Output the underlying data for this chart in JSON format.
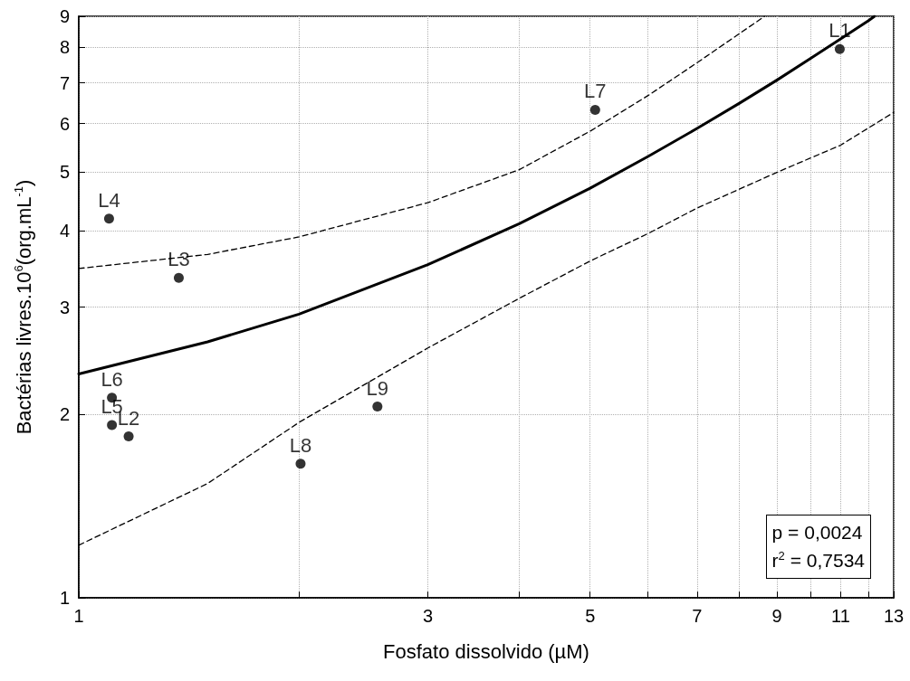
{
  "chart_data": {
    "type": "scatter",
    "xlabel": "Fosfato dissolvido (µM)",
    "ylabel": "Bactérias livres.10$^{6}$(org.mL$^{-1}$)",
    "series": [
      {
        "color": "#000000",
        "marker": "circle",
        "x": [
          10.97,
          1.17,
          1.37,
          1.1,
          1.11,
          1.11,
          5.08,
          2.01,
          2.56
        ],
        "values": [
          7.95,
          1.84,
          3.35,
          4.19,
          1.92,
          2.13,
          6.32,
          1.66,
          2.06
        ],
        "value_labels": [
          "L1",
          "L2",
          "L3",
          "L4",
          "L5",
          "L6",
          "L7",
          "L8",
          "L9"
        ]
      },
      {
        "type": "line",
        "color": "#000000",
        "marker": "none",
        "line_style": "solid",
        "x": [
          1,
          1.5,
          2,
          3,
          4,
          5,
          6,
          7,
          8,
          9,
          10,
          11,
          12,
          12.24
        ],
        "values": [
          2.33,
          2.63,
          2.92,
          3.52,
          4.11,
          4.7,
          5.3,
          5.89,
          6.48,
          7.07,
          7.67,
          8.26,
          8.85,
          9.0
        ]
      },
      {
        "type": "line",
        "color": "#000000",
        "marker": "none",
        "line_style": "dashed",
        "x": [
          1,
          1.5,
          2,
          3,
          4,
          5,
          6,
          7,
          8.66
        ],
        "values": [
          3.47,
          3.66,
          3.91,
          4.45,
          5.04,
          5.83,
          6.67,
          7.55,
          9.0
        ]
      },
      {
        "type": "line",
        "color": "#000000",
        "marker": "none",
        "line_style": "dashed",
        "x": [
          1,
          1.5,
          2,
          3,
          4,
          5,
          6,
          7,
          9,
          11,
          13
        ],
        "values": [
          1.22,
          1.54,
          1.94,
          2.57,
          3.1,
          3.57,
          3.96,
          4.36,
          4.99,
          5.53,
          6.26
        ]
      }
    ],
    "xlim": [
      1,
      13
    ],
    "ylim": [
      1,
      9
    ],
    "xticks": [
      1,
      {
        "value": 2,
        "label": null
      },
      3,
      {
        "value": 4,
        "label": null
      },
      5,
      {
        "value": 6,
        "label": null
      },
      7,
      {
        "value": 8,
        "label": null
      },
      9,
      {
        "value": 10,
        "label": null
      },
      11,
      {
        "value": 12,
        "label": null
      },
      13
    ],
    "yticks": [
      1,
      2,
      3,
      4,
      5,
      6,
      7,
      8,
      9
    ],
    "log": "xy",
    "grid": true,
    "annotations": [
      "p = 0,0024",
      "r$^{2}$ = 0,7534"
    ]
  }
}
